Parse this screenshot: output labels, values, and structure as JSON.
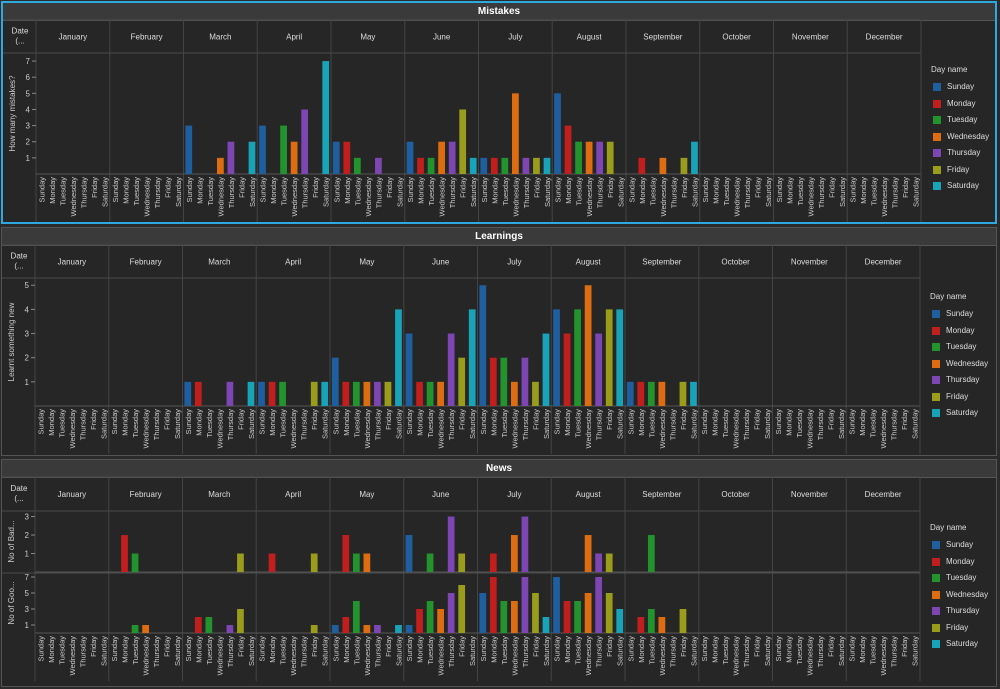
{
  "months": [
    "January",
    "February",
    "March",
    "April",
    "May",
    "June",
    "July",
    "August",
    "September",
    "October",
    "November",
    "December"
  ],
  "days": [
    "Sunday",
    "Monday",
    "Tuesday",
    "Wednesday",
    "Thursday",
    "Friday",
    "Saturday"
  ],
  "colors": {
    "Sunday": "#1f5fa0",
    "Monday": "#c11e1e",
    "Tuesday": "#23932e",
    "Wednesday": "#de6d12",
    "Thursday": "#7d46b3",
    "Friday": "#9a9d1c",
    "Saturday": "#18a3b8"
  },
  "legend": {
    "title": "Day name",
    "items": [
      "Sunday",
      "Monday",
      "Tuesday",
      "Wednesday",
      "Thursday",
      "Friday",
      "Saturday"
    ]
  },
  "col_header_label": "Date (...",
  "chart_data": [
    {
      "type": "bar",
      "title": "Mistakes",
      "ylabel": "How many mistakes?",
      "ylim": [
        0,
        7.5
      ],
      "yticks": [
        1,
        2,
        3,
        4,
        5,
        6,
        7
      ],
      "series": [
        {
          "name": "How many mistakes?",
          "values": {
            "March": [
              3,
              0,
              0,
              1,
              2,
              0,
              2
            ],
            "April": [
              3,
              0,
              3,
              2,
              4,
              0,
              7
            ],
            "May": [
              2,
              2,
              1,
              0,
              1,
              0,
              0
            ],
            "June": [
              2,
              1,
              1,
              2,
              2,
              4,
              1
            ],
            "July": [
              1,
              1,
              1,
              5,
              1,
              1,
              1
            ],
            "August": [
              5,
              3,
              2,
              2,
              2,
              2,
              0
            ],
            "September": [
              0,
              1,
              0,
              1,
              0,
              1,
              2
            ]
          }
        }
      ]
    },
    {
      "type": "bar",
      "title": "Learnings",
      "ylabel": "Learnt something new",
      "ylim": [
        0,
        5.3
      ],
      "yticks": [
        1,
        2,
        3,
        4,
        5
      ],
      "series": [
        {
          "name": "Learnt something new",
          "values": {
            "March": [
              1,
              1,
              0,
              0,
              1,
              0,
              1
            ],
            "April": [
              1,
              1,
              1,
              0,
              0,
              1,
              1
            ],
            "May": [
              2,
              1,
              1,
              1,
              1,
              1,
              4
            ],
            "June": [
              3,
              1,
              1,
              1,
              3,
              2,
              4
            ],
            "July": [
              5,
              2,
              2,
              1,
              2,
              1,
              3
            ],
            "August": [
              4,
              3,
              4,
              5,
              3,
              4,
              4
            ],
            "September": [
              1,
              1,
              1,
              1,
              0,
              1,
              1
            ]
          }
        }
      ]
    },
    {
      "type": "bar",
      "title": "News",
      "series": [
        {
          "name": "No of Bad...",
          "ylabel": "No of Bad...",
          "ylim": [
            0,
            3.3
          ],
          "yticks": [
            1,
            2,
            3
          ],
          "values": {
            "February": [
              0,
              2,
              1,
              0,
              0,
              0,
              0
            ],
            "March": [
              0,
              0,
              0,
              0,
              0,
              1,
              0
            ],
            "April": [
              0,
              1,
              0,
              0,
              0,
              1,
              0
            ],
            "May": [
              0,
              2,
              1,
              1,
              0,
              0,
              0
            ],
            "June": [
              2,
              0,
              1,
              0,
              3,
              1,
              0
            ],
            "July": [
              0,
              1,
              0,
              2,
              3,
              0,
              0
            ],
            "August": [
              0,
              0,
              0,
              2,
              1,
              1,
              0
            ],
            "September": [
              0,
              0,
              2,
              0,
              0,
              0,
              0
            ]
          }
        },
        {
          "name": "No of Goo...",
          "ylabel": "No of Goo...",
          "ylim": [
            0,
            7.5
          ],
          "yticks": [
            1,
            3,
            5,
            7
          ],
          "values": {
            "February": [
              0,
              0,
              1,
              1,
              0,
              0,
              0
            ],
            "March": [
              0,
              2,
              2,
              0,
              1,
              3,
              0
            ],
            "April": [
              0,
              0,
              0,
              0,
              0,
              1,
              0
            ],
            "May": [
              1,
              2,
              4,
              1,
              1,
              0,
              1
            ],
            "June": [
              1,
              3,
              4,
              3,
              5,
              6,
              0
            ],
            "July": [
              5,
              7,
              4,
              4,
              7,
              5,
              2
            ],
            "August": [
              7,
              4,
              4,
              5,
              7,
              5,
              3
            ],
            "September": [
              0,
              2,
              3,
              2,
              0,
              3,
              0
            ]
          }
        }
      ]
    }
  ]
}
